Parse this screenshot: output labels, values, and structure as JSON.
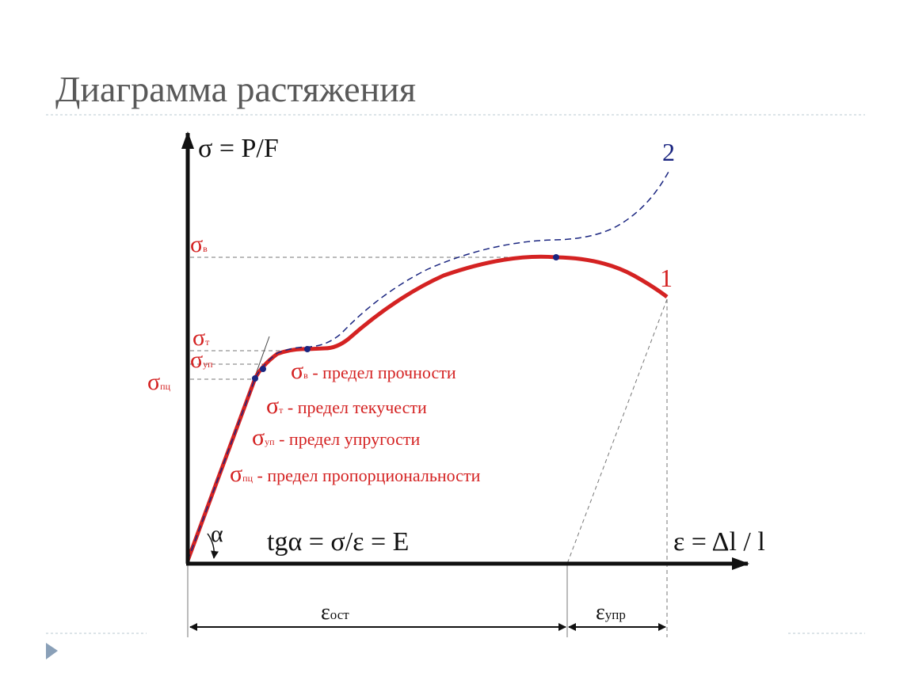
{
  "header": {
    "title": "Диаграмма растяжения"
  },
  "axes": {
    "y_label": "σ = P/F",
    "x_label": "ε = Δl / l"
  },
  "curves": [
    {
      "label": "1"
    },
    {
      "label": "2"
    }
  ],
  "levels": [
    {
      "symbol": "σ",
      "sub": "в"
    },
    {
      "symbol": "σ",
      "sub": "т"
    },
    {
      "symbol": "σ",
      "sub": "уп"
    },
    {
      "symbol": "σ",
      "sub": "пц"
    }
  ],
  "legend": [
    {
      "symbol": "σ",
      "sub": "в",
      "text": "- предел прочности"
    },
    {
      "symbol": "σ",
      "sub": "т",
      "text": "- предел текучести"
    },
    {
      "symbol": "σ",
      "sub": "уп",
      "text": "- предел упругости"
    },
    {
      "symbol": "σ",
      "sub": "пц",
      "text": "- предел пропорциональности"
    }
  ],
  "angle": "α",
  "formula": "tgα = σ/ε = E",
  "strain": {
    "residual": {
      "symbol": "ε",
      "sub": "ост"
    },
    "elastic": {
      "symbol": "ε",
      "sub": "упр"
    }
  }
}
